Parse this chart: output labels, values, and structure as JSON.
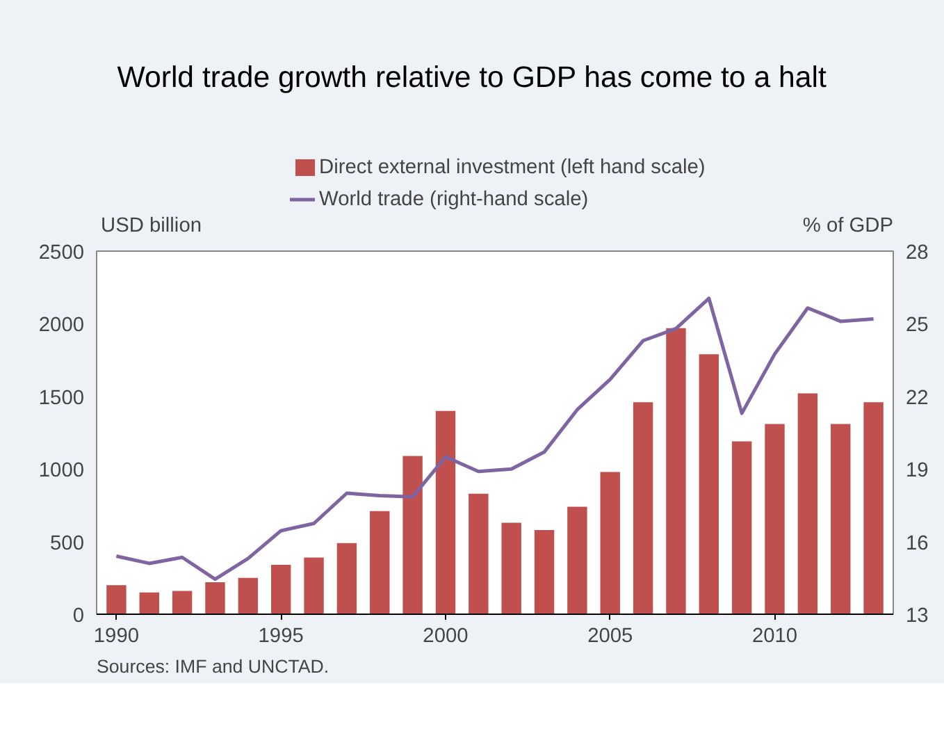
{
  "chart_data": {
    "type": "bar",
    "title": "World trade growth relative to GDP has come to a halt",
    "ylabel": "USD billion",
    "y2label": "% of GDP",
    "x": [
      1990,
      1991,
      1992,
      1993,
      1994,
      1995,
      1996,
      1997,
      1998,
      1999,
      2000,
      2001,
      2002,
      2003,
      2004,
      2005,
      2006,
      2007,
      2008,
      2009,
      2010,
      2011,
      2012,
      2013
    ],
    "series": [
      {
        "name": "Direct external investment (left hand scale)",
        "color": "#c0504d",
        "values": [
          200,
          150,
          160,
          220,
          250,
          340,
          390,
          490,
          710,
          1090,
          1400,
          830,
          630,
          580,
          740,
          980,
          1460,
          1970,
          1790,
          1190,
          1310,
          1520,
          1310,
          1460
        ]
      },
      {
        "name": "World trade (right-hand scale)",
        "type": "line",
        "axis": "y2",
        "color": "#7f64a2",
        "values": [
          15.4,
          15.1,
          15.35,
          14.45,
          15.3,
          16.45,
          16.75,
          18.0,
          17.9,
          17.85,
          19.5,
          18.9,
          19.0,
          19.7,
          21.45,
          22.7,
          24.3,
          24.8,
          26.05,
          21.3,
          23.75,
          25.65,
          25.1,
          25.2
        ]
      }
    ],
    "xlim": [
      1989.4,
      2013.6
    ],
    "xticks": [
      1990,
      1995,
      2000,
      2005,
      2010
    ],
    "ylim": [
      0,
      2500
    ],
    "yticks": [
      0,
      500,
      1000,
      1500,
      2000,
      2500
    ],
    "y2lim": [
      13,
      28
    ],
    "y2ticks": [
      13,
      16,
      19,
      22,
      25,
      28
    ],
    "legend": "top",
    "grid": false,
    "line_style": "solid",
    "annotations": [
      "Sources: IMF and UNCTAD."
    ]
  }
}
